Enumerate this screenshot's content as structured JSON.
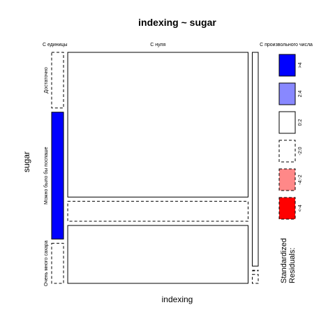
{
  "chart_data": {
    "type": "mosaic",
    "title": "indexing ~ sugar",
    "xlabel": "indexing",
    "ylabel": "sugar",
    "x_categories": [
      "С единицы",
      "С нуля",
      "С произвольного числа"
    ],
    "y_categories": [
      "Достаточно",
      "Можно было бы поспаше",
      "Очень много сахара"
    ],
    "column_proportions": [
      0.06,
      0.91,
      0.03
    ],
    "cells": [
      {
        "x": "С единицы",
        "y": "Достаточно",
        "share_of_column": 0.25,
        "residual_band": "-2:0"
      },
      {
        "x": "С единицы",
        "y": "Можно было бы поспаше",
        "share_of_column": 0.57,
        "residual_band": ">4"
      },
      {
        "x": "С единицы",
        "y": "Очень много сахара",
        "share_of_column": 0.18,
        "residual_band": "-2:0"
      },
      {
        "x": "С нуля",
        "y": "Достаточно",
        "share_of_column": 0.65,
        "residual_band": "0:2"
      },
      {
        "x": "С нуля",
        "y": "Можно было бы поспаше",
        "share_of_column": 0.09,
        "residual_band": "-2:0"
      },
      {
        "x": "С нуля",
        "y": "Очень много сахара",
        "share_of_column": 0.26,
        "residual_band": "0:2"
      },
      {
        "x": "С произвольного числа",
        "y": "Достаточно",
        "share_of_column": 0.96,
        "residual_band": "0:2"
      },
      {
        "x": "С произвольного числа",
        "y": "Можно было бы поспаше",
        "share_of_column": 0.0,
        "residual_band": "-2:0"
      },
      {
        "x": "С произвольного числа",
        "y": "Очень много сахара",
        "share_of_column": 0.04,
        "residual_band": "-2:0"
      }
    ],
    "legend": {
      "title_line1": "Standardized",
      "title_line2": "Residuals:",
      "placement": "right",
      "items": [
        {
          "label": ">4",
          "fill": "#0000ff",
          "dashed": false
        },
        {
          "label": "2:4",
          "fill": "#8888ff",
          "dashed": false
        },
        {
          "label": "0:2",
          "fill": "#ffffff",
          "dashed": false
        },
        {
          "label": "-2:0",
          "fill": "#ffffff",
          "dashed": true
        },
        {
          "label": "-4:-2",
          "fill": "#ff8888",
          "dashed": true
        },
        {
          "label": "<-4",
          "fill": "#ff0000",
          "dashed": true
        }
      ]
    },
    "band_colors": {
      ">4": "#0000ff",
      "2:4": "#8888ff",
      "0:2": "#ffffff",
      "-2:0": "#ffffff",
      "-4:-2": "#ff8888",
      "<-4": "#ff0000"
    }
  }
}
